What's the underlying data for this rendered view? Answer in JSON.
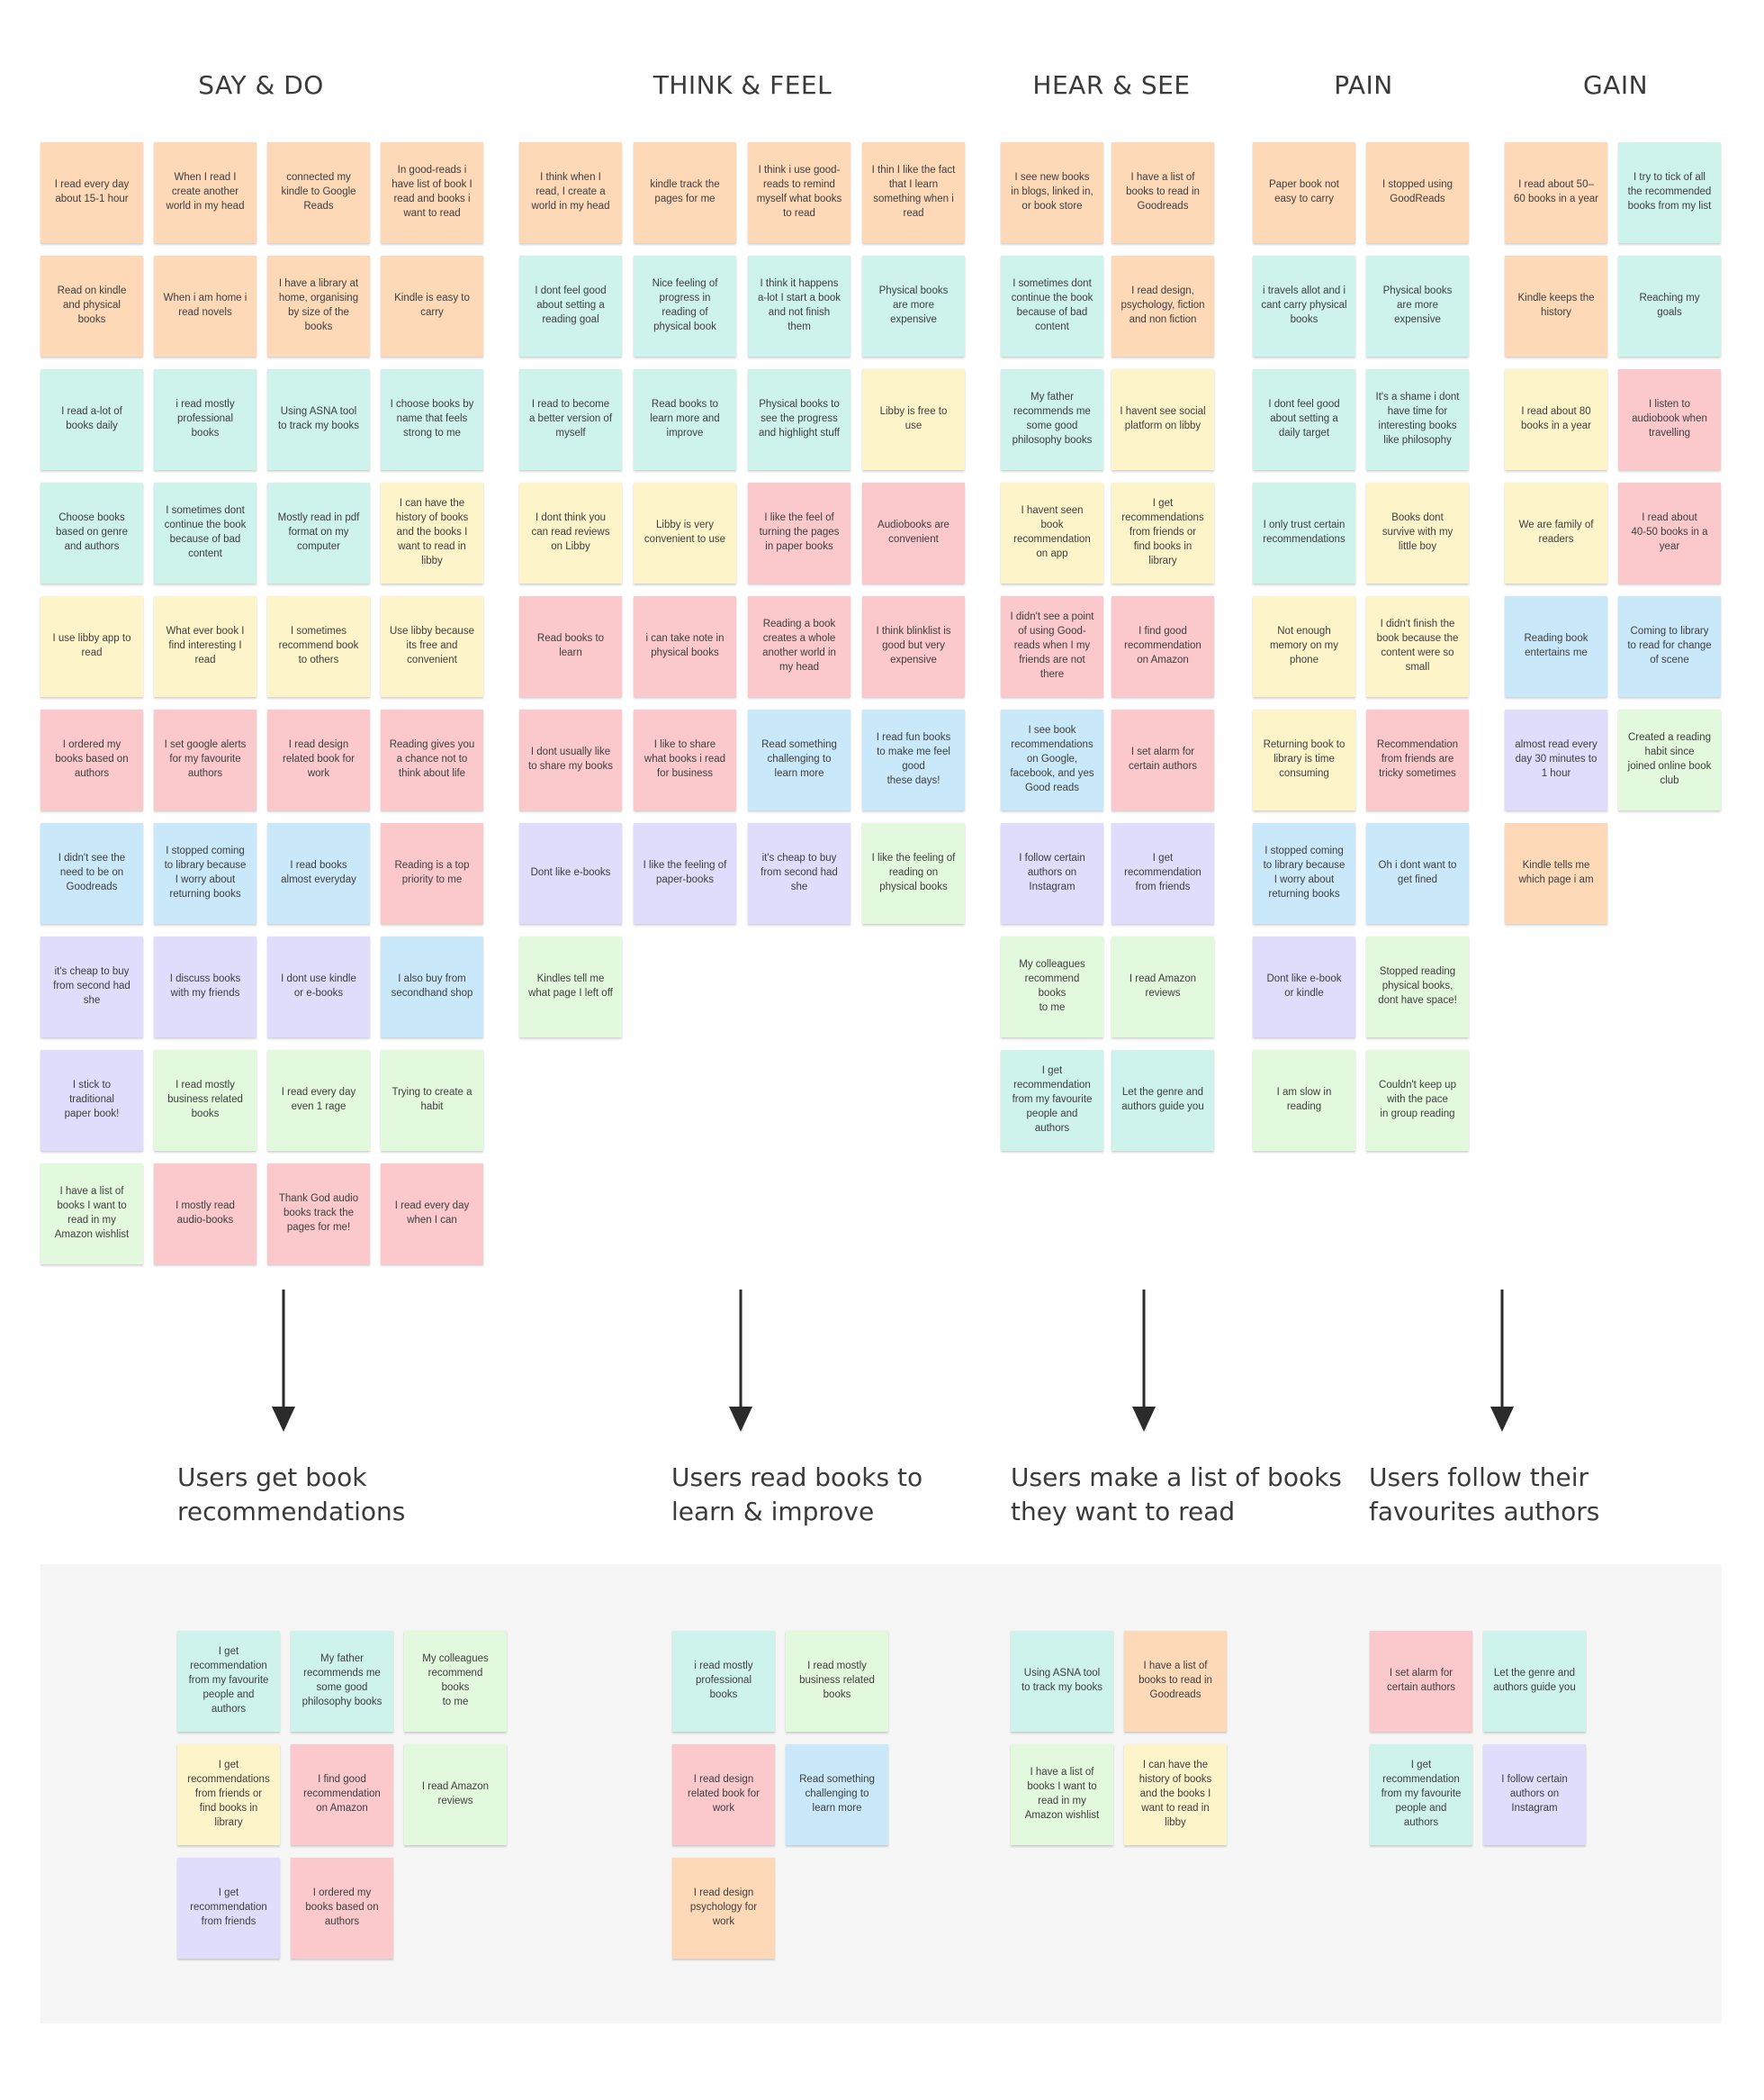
{
  "columns": [
    {
      "title": "SAY & DO"
    },
    {
      "title": "THINK & FEEL"
    },
    {
      "title": "HEAR & SEE"
    },
    {
      "title": "PAIN"
    },
    {
      "title": "GAIN"
    }
  ],
  "colors": {
    "orange": "#fdd9b8",
    "teal": "#cdf3ec",
    "yellow": "#fef4c9",
    "pink": "#fbc9cc",
    "blue": "#c9e9fb",
    "purple": "#e0dcfb",
    "green": "#e2f9dd"
  },
  "notes": [
    {
      "text": "I read every day\nabout 15-1 hour",
      "color": "orange"
    },
    {
      "text": "When I read I\ncreate another\nworld in my head",
      "color": "orange"
    },
    {
      "text": "connected my\nkindle to Google\nReads",
      "color": "orange"
    },
    {
      "text": "In good-reads i\nhave list of book I\nread and books i\nwant to read",
      "color": "orange"
    },
    {
      "text": "Read on kindle\nand physical\nbooks",
      "color": "orange"
    },
    {
      "text": "When i am home i\nread novels",
      "color": "orange"
    },
    {
      "text": "I have a library at\nhome, organising\nby size of the\nbooks",
      "color": "orange"
    },
    {
      "text": "Kindle is easy to\ncarry",
      "color": "orange"
    },
    {
      "text": "I read a-lot of\nbooks daily",
      "color": "teal"
    },
    {
      "text": "i read mostly\nprofessional\nbooks",
      "color": "teal"
    },
    {
      "text": "Using ASNA tool\nto track my books",
      "color": "teal"
    },
    {
      "text": "I choose books by\nname that feels\nstrong to me",
      "color": "teal"
    },
    {
      "text": "Choose books\nbased on genre\nand authors",
      "color": "teal"
    },
    {
      "text": "I sometimes dont\ncontinue the book\nbecause of bad\ncontent",
      "color": "teal"
    },
    {
      "text": "Mostly read in pdf\nformat on my\ncomputer",
      "color": "teal"
    },
    {
      "text": "I can have the\nhistory of books\nand the books I\nwant to read in\nlibby",
      "color": "yellow"
    },
    {
      "text": "I use libby app to\nread",
      "color": "yellow"
    },
    {
      "text": "What ever book I\nfind interesting I\nread",
      "color": "yellow"
    },
    {
      "text": "I sometimes\nrecommend book\nto others",
      "color": "yellow"
    },
    {
      "text": "Use libby because\nits free and\nconvenient",
      "color": "yellow"
    },
    {
      "text": "I ordered my\nbooks based on\nauthors",
      "color": "pink"
    },
    {
      "text": "I set google alerts\nfor my favourite\nauthors",
      "color": "pink"
    },
    {
      "text": "I read design\nrelated book for\nwork",
      "color": "pink"
    },
    {
      "text": "Reading gives you\na chance not to\nthink about life",
      "color": "pink"
    },
    {
      "text": "I didn't see the\nneed to be on\nGoodreads",
      "color": "blue"
    },
    {
      "text": "I stopped coming\nto library because\nI worry about\nreturning books",
      "color": "blue"
    },
    {
      "text": "I read books\nalmost everyday",
      "color": "blue"
    },
    {
      "text": "Reading is a top\npriority to me",
      "color": "pink"
    },
    {
      "text": "it's cheap to buy\nfrom second had\nshe",
      "color": "purple"
    },
    {
      "text": "I discuss books\nwith my friends",
      "color": "purple"
    },
    {
      "text": "I dont use kindle\nor e-books",
      "color": "purple"
    },
    {
      "text": "I also buy from\nsecondhand shop",
      "color": "blue"
    },
    {
      "text": "I stick to\ntraditional\npaper book!",
      "color": "purple"
    },
    {
      "text": "I read mostly\nbusiness related\nbooks",
      "color": "green"
    },
    {
      "text": "I read every day\neven 1 rage",
      "color": "green"
    },
    {
      "text": "Trying to create a\nhabit",
      "color": "green"
    },
    {
      "text": "I have a list of\nbooks I want to\nread in my\nAmazon wishlist",
      "color": "green"
    },
    {
      "text": "I mostly read\naudio-books",
      "color": "pink"
    },
    {
      "text": "Thank God audio\nbooks track the\npages for me!",
      "color": "pink"
    },
    {
      "text": "I read every day\nwhen I can",
      "color": "pink"
    },
    {
      "text": "I think when I\nread, I create a\nworld in my head",
      "color": "orange"
    },
    {
      "text": "kindle track the\npages for me",
      "color": "orange"
    },
    {
      "text": "I think i use good-\nreads to remind\nmyself what books\nto read",
      "color": "orange"
    },
    {
      "text": "I thin I like the fact\nthat I learn\nsomething when i\nread",
      "color": "orange"
    },
    {
      "text": "I dont feel good\nabout setting a\nreading goal",
      "color": "teal"
    },
    {
      "text": "Nice feeling of\nprogress in\nreading of\nphysical book",
      "color": "teal"
    },
    {
      "text": "I think it happens\na-lot I start a book\nand not finish\nthem",
      "color": "teal"
    },
    {
      "text": "Physical books\nare more\nexpensive",
      "color": "teal"
    },
    {
      "text": "I read to become\na better version of\nmyself",
      "color": "teal"
    },
    {
      "text": "Read books to\nlearn more and\nimprove",
      "color": "teal"
    },
    {
      "text": "Physical books to\nsee the progress\nand highlight stuff",
      "color": "teal"
    },
    {
      "text": "Libby is free to\nuse",
      "color": "yellow"
    },
    {
      "text": "I dont think you\ncan read reviews\non Libby",
      "color": "yellow"
    },
    {
      "text": "Libby is very\nconvenient to use",
      "color": "yellow"
    },
    {
      "text": "I like the feel of\nturning the pages\nin paper books",
      "color": "pink"
    },
    {
      "text": "Audiobooks are\nconvenient",
      "color": "pink"
    },
    {
      "text": "Read books to\nlearn",
      "color": "pink"
    },
    {
      "text": "i can take note in\nphysical books",
      "color": "pink"
    },
    {
      "text": "Reading a book\ncreates a whole\nanother world in\nmy head",
      "color": "pink"
    },
    {
      "text": "I think blinklist is\ngood but very\nexpensive",
      "color": "pink"
    },
    {
      "text": "I dont usually like\nto share my books",
      "color": "pink"
    },
    {
      "text": "I like to share\nwhat books i read\nfor business",
      "color": "pink"
    },
    {
      "text": "Read something\nchallenging to\nlearn more",
      "color": "blue"
    },
    {
      "text": "I read fun books\nto make me feel\ngood\nthese days!",
      "color": "blue"
    },
    {
      "text": "Dont like e-books",
      "color": "purple"
    },
    {
      "text": "I like the feeling of\npaper-books",
      "color": "purple"
    },
    {
      "text": "it's cheap to buy\nfrom second had\nshe",
      "color": "purple"
    },
    {
      "text": "I like the feeling of\nreading on\nphysical books",
      "color": "green"
    },
    {
      "text": "Kindles tell me\nwhat page I left off",
      "color": "green"
    },
    {
      "text": "I see new books\nin blogs, linked in,\nor book store",
      "color": "orange"
    },
    {
      "text": "I have a list of\nbooks to read in\nGoodreads",
      "color": "orange"
    },
    {
      "text": "I sometimes dont\ncontinue the book\nbecause of bad\ncontent",
      "color": "teal"
    },
    {
      "text": "I read design,\npsychology, fiction\nand non fiction",
      "color": "orange"
    },
    {
      "text": "My father\nrecommends me\nsome good\nphilosophy books",
      "color": "teal"
    },
    {
      "text": "I havent see social\nplatform on libby",
      "color": "yellow"
    },
    {
      "text": "I havent seen\nbook\nrecommendation\non app",
      "color": "yellow"
    },
    {
      "text": "I get\nrecommendations\nfrom friends or\nfind books in\nlibrary",
      "color": "yellow"
    },
    {
      "text": "I didn't see a point\nof using Good-\nreads when I my\nfriends are not\nthere",
      "color": "pink"
    },
    {
      "text": "I find good\nrecommendation\non Amazon",
      "color": "pink"
    },
    {
      "text": "I see book\nrecommendations\non Google,\nfacebook, and yes\nGood reads",
      "color": "blue"
    },
    {
      "text": "I set alarm for\ncertain authors",
      "color": "pink"
    },
    {
      "text": "I follow certain\nauthors on\nInstagram",
      "color": "purple"
    },
    {
      "text": "I get\nrecommendation\nfrom friends",
      "color": "purple"
    },
    {
      "text": "My colleagues\nrecommend\nbooks\nto me",
      "color": "green"
    },
    {
      "text": "I read Amazon\nreviews",
      "color": "green"
    },
    {
      "text": "I get\nrecommendation\nfrom my favourite\npeople and\nauthors",
      "color": "teal"
    },
    {
      "text": "Let the genre and\nauthors guide you",
      "color": "teal"
    },
    {
      "text": "Paper book not\neasy to carry",
      "color": "orange"
    },
    {
      "text": "I stopped using\nGoodReads",
      "color": "orange"
    },
    {
      "text": "i travels allot and i\ncant carry physical\nbooks",
      "color": "teal"
    },
    {
      "text": "Physical books\nare more\nexpensive",
      "color": "teal"
    },
    {
      "text": "I dont feel good\nabout setting a\ndaily target",
      "color": "teal"
    },
    {
      "text": "It's a shame i dont\nhave time for\ninteresting books\nlike philosophy",
      "color": "teal"
    },
    {
      "text": "I only trust certain\nrecommendations",
      "color": "teal"
    },
    {
      "text": "Books dont\nsurvive with my\nlittle boy",
      "color": "yellow"
    },
    {
      "text": "Not enough\nmemory on my\nphone",
      "color": "yellow"
    },
    {
      "text": "I didn't finish the\nbook because the\ncontent were so\nsmall",
      "color": "yellow"
    },
    {
      "text": "Returning book to\nlibrary is time\nconsuming",
      "color": "yellow"
    },
    {
      "text": "Recommendation\nfrom friends are\ntricky sometimes",
      "color": "pink"
    },
    {
      "text": "I stopped coming\nto library because\nI worry about\nreturning books",
      "color": "blue"
    },
    {
      "text": "Oh i dont want to\nget fined",
      "color": "blue"
    },
    {
      "text": "Dont like e-book\nor kindle",
      "color": "purple"
    },
    {
      "text": "Stopped reading\nphysical books,\ndont have space!",
      "color": "green"
    },
    {
      "text": "I am slow in\nreading",
      "color": "green"
    },
    {
      "text": "Couldn't keep up\nwith the pace\nin group reading",
      "color": "green"
    },
    {
      "text": "I read about 50–\n60 books in a year",
      "color": "orange"
    },
    {
      "text": "I try to tick of all\nthe recommended\nbooks from my list",
      "color": "teal"
    },
    {
      "text": "Kindle keeps the\nhistory",
      "color": "orange"
    },
    {
      "text": "Reaching my\ngoals",
      "color": "teal"
    },
    {
      "text": "I read about 80\nbooks in a year",
      "color": "yellow"
    },
    {
      "text": "I listen to\naudiobook when\ntravelling",
      "color": "pink"
    },
    {
      "text": "We are family of\nreaders",
      "color": "yellow"
    },
    {
      "text": "I read about\n40-50 books in a\nyear",
      "color": "pink"
    },
    {
      "text": "Reading book\nentertains me",
      "color": "blue"
    },
    {
      "text": "Coming to library\nto read for change\nof scene",
      "color": "blue"
    },
    {
      "text": "almost read every\nday 30 minutes to\n1 hour",
      "color": "purple"
    },
    {
      "text": "Created a reading\nhabit since\njoined online book\nclub",
      "color": "green"
    },
    {
      "text": "Kindle tells me\nwhich page i am",
      "color": "orange"
    }
  ],
  "insights": [
    {
      "title": "Users get book\nrecommendations"
    },
    {
      "title": "Users read books to\nlearn & improve"
    },
    {
      "title": "Users make a list of books\nthey want to read"
    },
    {
      "title": "Users follow their\nfavourites authors"
    }
  ],
  "cluster_notes": [
    {
      "text": "I get\nrecommendation\nfrom my favourite\npeople and\nauthors",
      "color": "teal"
    },
    {
      "text": "My father\nrecommends me\nsome good\nphilosophy books",
      "color": "teal"
    },
    {
      "text": "My colleagues\nrecommend\nbooks\nto me",
      "color": "green"
    },
    {
      "text": "I get\nrecommendations\nfrom friends or\nfind books in\nlibrary",
      "color": "yellow"
    },
    {
      "text": "I find good\nrecommendation\non Amazon",
      "color": "pink"
    },
    {
      "text": "I read Amazon\nreviews",
      "color": "green"
    },
    {
      "text": "I get\nrecommendation\nfrom friends",
      "color": "purple"
    },
    {
      "text": "I ordered my\nbooks based on\nauthors",
      "color": "pink"
    },
    {
      "text": "i read mostly\nprofessional\nbooks",
      "color": "teal"
    },
    {
      "text": "I read mostly\nbusiness related\nbooks",
      "color": "green"
    },
    {
      "text": "I read design\nrelated book for\nwork",
      "color": "pink"
    },
    {
      "text": "Read something\nchallenging to\nlearn more",
      "color": "blue"
    },
    {
      "text": "I read design\npsychology for\nwork",
      "color": "orange"
    },
    {
      "text": "Using ASNA tool\nto track my books",
      "color": "teal"
    },
    {
      "text": "I have a list of\nbooks to read in\nGoodreads",
      "color": "orange"
    },
    {
      "text": "I have a list of\nbooks I want to\nread in my\nAmazon wishlist",
      "color": "green"
    },
    {
      "text": "I can have the\nhistory of books\nand the books I\nwant to read in\nlibby",
      "color": "yellow"
    },
    {
      "text": "I set alarm for\ncertain authors",
      "color": "pink"
    },
    {
      "text": "Let the genre and\nauthors guide you",
      "color": "teal"
    },
    {
      "text": "I get\nrecommendation\nfrom my favourite\npeople and\nauthors",
      "color": "teal"
    },
    {
      "text": "I follow certain\nauthors on\nInstagram",
      "color": "purple"
    }
  ]
}
